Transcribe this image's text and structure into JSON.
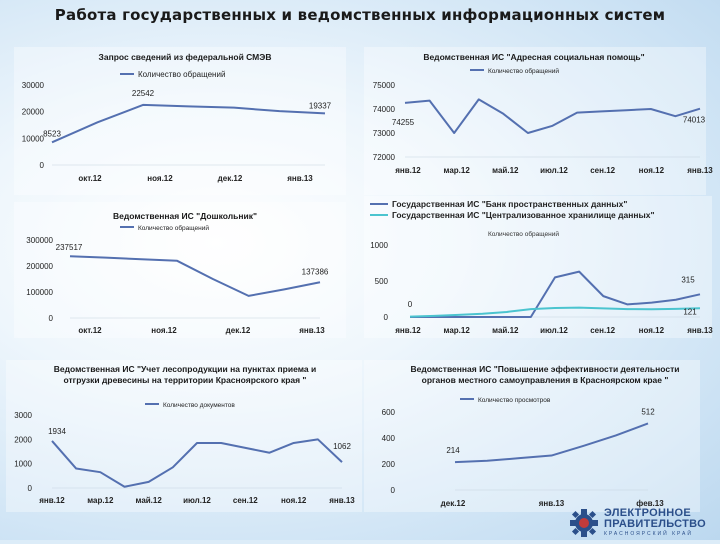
{
  "slide": {
    "title": "Работа государственных и ведомственных информационных систем"
  },
  "logo": {
    "line1": "ЭЛЕКТРОННОЕ",
    "line2": "ПРАВИТЕЛЬСТВО",
    "line3": "КРАСНОЯРСКИЙ КРАЙ",
    "color": "#2b4f8a"
  },
  "chart_data": [
    {
      "type": "line",
      "title": "Запрос сведений из федеральной СМЭВ",
      "series": [
        {
          "name": "Количество обращений",
          "color": "#5470b0",
          "values": [
            8523,
            16000,
            22542,
            22000,
            21500,
            20200,
            19337
          ]
        }
      ],
      "x_labels": [
        "окт.12",
        "ноя.12",
        "дек.12",
        "янв.13"
      ],
      "y_ticks": [
        "30000",
        "20000",
        "10000",
        "0"
      ],
      "ylim": [
        0,
        30000
      ],
      "data_labels": [
        "8523",
        "22542",
        "19337"
      ]
    },
    {
      "type": "line",
      "title": "Ведомственная ИС \"Адресная социальная помощь\"",
      "series": [
        {
          "name": "Количество обращений",
          "color": "#5470b0",
          "values": [
            74255,
            74350,
            73000,
            74400,
            73800,
            73000,
            73300,
            73850,
            73900,
            73950,
            74000,
            73700,
            74013
          ]
        }
      ],
      "x_labels": [
        "янв.12",
        "мар.12",
        "май.12",
        "июл.12",
        "сен.12",
        "ноя.12",
        "янв.13"
      ],
      "y_ticks": [
        "75000",
        "74000",
        "73000",
        "72000"
      ],
      "ylim": [
        72000,
        75000
      ],
      "data_labels": [
        "74255",
        "74013"
      ]
    },
    {
      "type": "line",
      "title": "Ведомственная ИС \"Дошкольник\"",
      "series": [
        {
          "name": "Количество обращений",
          "color": "#5470b0",
          "values": [
            237517,
            232000,
            226000,
            220000,
            150000,
            85000,
            110000,
            137386
          ]
        }
      ],
      "x_labels": [
        "окт.12",
        "ноя.12",
        "дек.12",
        "янв.13"
      ],
      "y_ticks": [
        "300000",
        "200000",
        "100000",
        "0"
      ],
      "ylim": [
        0,
        300000
      ],
      "data_labels": [
        "237517",
        "137386"
      ]
    },
    {
      "type": "line",
      "title": "",
      "series": [
        {
          "name": "Государственная ИС \"Банк пространственных данных\"",
          "color": "#5470b0",
          "values": [
            0,
            0,
            0,
            0,
            0,
            0,
            550,
            630,
            290,
            175,
            200,
            240,
            315
          ]
        },
        {
          "name": "Государственная ИС \"Централизованное хранилище данных\"",
          "color": "#4bc4cf",
          "values": [
            5,
            15,
            30,
            45,
            70,
            110,
            125,
            130,
            120,
            110,
            108,
            112,
            121
          ]
        }
      ],
      "legend_caption": "Количество обращений",
      "x_labels": [
        "янв.12",
        "мар.12",
        "май.12",
        "июл.12",
        "сен.12",
        "ноя.12",
        "янв.13"
      ],
      "y_ticks": [
        "1000",
        "500",
        "0"
      ],
      "ylim": [
        0,
        1000
      ],
      "data_labels": [
        "0",
        "315",
        "121"
      ]
    },
    {
      "type": "line",
      "title": "Ведомственная ИС \"Учет лесопродукции на пунктах приема и отгрузки древесины на территории Красноярского края \"",
      "series": [
        {
          "name": "Количество документов",
          "color": "#5470b0",
          "values": [
            1934,
            800,
            650,
            50,
            250,
            850,
            1850,
            1850,
            1650,
            1450,
            1850,
            2000,
            1062
          ]
        }
      ],
      "x_labels": [
        "янв.12",
        "мар.12",
        "май.12",
        "июл.12",
        "сен.12",
        "ноя.12",
        "янв.13"
      ],
      "y_ticks": [
        "3000",
        "2000",
        "1000",
        "0"
      ],
      "ylim": [
        0,
        3000
      ],
      "data_labels": [
        "1934",
        "1062"
      ]
    },
    {
      "type": "line",
      "title": "Ведомственная ИС \"Повышение эффективности деятельности органов местного самоуправления в Красноярском крае \"",
      "series": [
        {
          "name": "Количество просмотров",
          "color": "#5470b0",
          "values": [
            214,
            225,
            245,
            265,
            340,
            420,
            512
          ]
        }
      ],
      "x_labels": [
        "дек.12",
        "янв.13",
        "фев.13"
      ],
      "y_ticks": [
        "600",
        "400",
        "200",
        "0"
      ],
      "ylim": [
        0,
        600
      ],
      "data_labels": [
        "214",
        "512"
      ]
    }
  ]
}
